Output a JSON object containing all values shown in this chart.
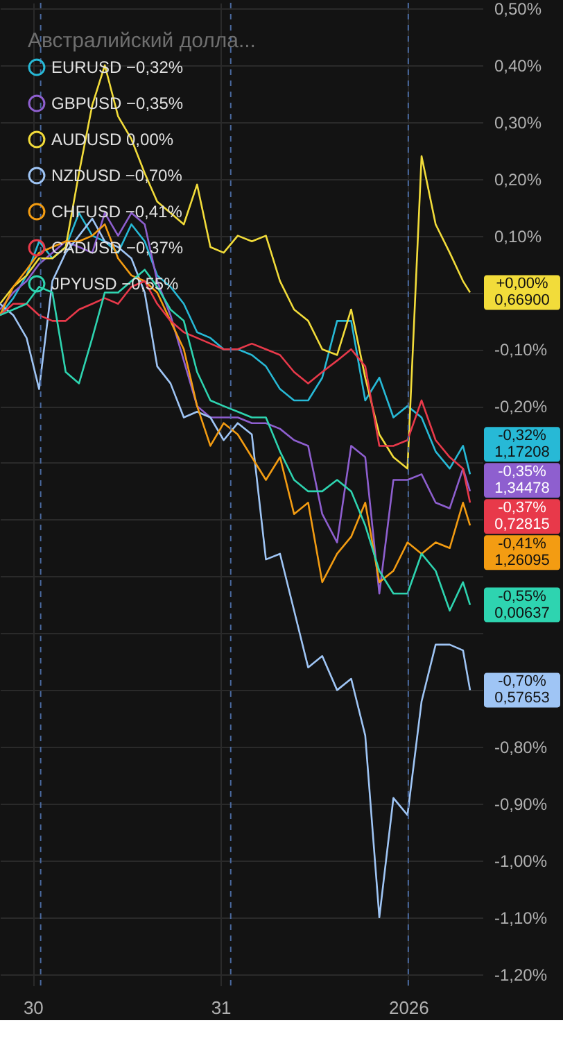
{
  "chart_data": {
    "type": "line",
    "legend_title": "Австралийский долла...",
    "legend": "top left",
    "grid": true,
    "line_style": "solid",
    "x": [
      "2025-12-29T19:48",
      "2025-12-29T21:30",
      "2025-12-29T23:12",
      "2025-12-30T00:48",
      "2025-12-30T02:30",
      "2025-12-30T04:12",
      "2025-12-30T05:54",
      "2025-12-30T07:36",
      "2025-12-30T09:12",
      "2025-12-30T10:54",
      "2025-12-30T12:36",
      "2025-12-30T14:18",
      "2025-12-30T15:54",
      "2025-12-30T17:36",
      "2025-12-30T19:18",
      "2025-12-30T21:00",
      "2025-12-30T22:42",
      "2025-12-31T00:24",
      "2025-12-31T02:12",
      "2025-12-31T04:00",
      "2025-12-31T05:48",
      "2025-12-31T07:36",
      "2025-12-31T09:24",
      "2025-12-31T11:12",
      "2025-12-31T13:00",
      "2025-12-31T14:54",
      "2025-12-31T16:42",
      "2025-12-31T18:30",
      "2025-12-31T20:18",
      "2025-12-31T22:06",
      "2025-12-31T23:54",
      "2026-01-01T01:42",
      "2026-01-01T03:30",
      "2026-01-01T05:18",
      "2026-01-01T07:00",
      "2026-01-01T07:54"
    ],
    "xlim": [
      "2025-12-29T19:48",
      "2026-01-01T09:30"
    ],
    "xticks": [
      {
        "value": "2025-12-30",
        "label": "30"
      },
      {
        "value": "2025-12-31",
        "label": "31"
      },
      {
        "value": "2026-01-01",
        "label": "2026"
      }
    ],
    "ylim": [
      -1.22,
      0.51
    ],
    "yticks": [
      {
        "value": 0.5,
        "label": "0,50%"
      },
      {
        "value": 0.4,
        "label": "0,40%"
      },
      {
        "value": 0.3,
        "label": "0,30%"
      },
      {
        "value": 0.2,
        "label": "0,20%"
      },
      {
        "value": 0.1,
        "label": "0,10%"
      },
      {
        "value": 0,
        "label": null
      },
      {
        "value": -0.1,
        "label": "-0,10%"
      },
      {
        "value": -0.2,
        "label": "-0,20%"
      },
      {
        "value": -0.3,
        "label": null
      },
      {
        "value": -0.4,
        "label": null
      },
      {
        "value": -0.5,
        "label": null
      },
      {
        "value": -0.6,
        "label": null
      },
      {
        "value": -0.7,
        "label": null
      },
      {
        "value": -0.8,
        "label": "-0,80%"
      },
      {
        "value": -0.9,
        "label": "-0,90%"
      },
      {
        "value": -1.0,
        "label": "-1,00%"
      },
      {
        "value": -1.1,
        "label": "-1,10%"
      },
      {
        "value": -1.2,
        "label": "-1,20%"
      }
    ],
    "ref_lines": [
      {
        "axis": "x",
        "value": "2025-12-30T01:00",
        "color": "#4a6aa0",
        "line_style": "dashed"
      },
      {
        "axis": "x",
        "value": "2025-12-31T01:18",
        "color": "#4a6aa0",
        "line_style": "dashed"
      },
      {
        "axis": "x",
        "value": "2026-01-01T00:00",
        "color": "#4a6aa0",
        "line_style": "dashed"
      }
    ],
    "series": [
      {
        "name": "EURUSD −0,32%",
        "color": "#27b9d6",
        "values": [
          -0.04,
          -0.01,
          0.03,
          0.09,
          0.06,
          0.08,
          0.14,
          0.1,
          0.09,
          0.07,
          0.12,
          0.09,
          0.03,
          0.01,
          -0.02,
          -0.07,
          -0.08,
          -0.1,
          -0.1,
          -0.11,
          -0.13,
          -0.17,
          -0.19,
          -0.19,
          -0.15,
          -0.05,
          -0.05,
          -0.19,
          -0.15,
          -0.22,
          -0.2,
          -0.22,
          -0.28,
          -0.31,
          -0.27,
          -0.32
        ]
      },
      {
        "name": "GBPUSD −0,35%",
        "color": "#8e5fcf",
        "values": [
          -0.03,
          0.0,
          0.02,
          0.05,
          0.07,
          0.09,
          0.08,
          0.07,
          0.14,
          0.1,
          0.14,
          0.12,
          0.02,
          -0.04,
          -0.12,
          -0.2,
          -0.22,
          -0.22,
          -0.22,
          -0.23,
          -0.23,
          -0.24,
          -0.26,
          -0.27,
          -0.39,
          -0.44,
          -0.27,
          -0.29,
          -0.53,
          -0.33,
          -0.33,
          -0.32,
          -0.37,
          -0.38,
          -0.31,
          -0.35
        ]
      },
      {
        "name": "AUDUSD 0,00%",
        "color": "#f2dc3a",
        "values": [
          -0.02,
          0.01,
          0.03,
          0.06,
          0.06,
          0.08,
          0.21,
          0.33,
          0.4,
          0.31,
          0.27,
          0.21,
          0.16,
          0.14,
          0.12,
          0.19,
          0.08,
          0.07,
          0.1,
          0.09,
          0.1,
          0.02,
          -0.03,
          -0.05,
          -0.1,
          -0.11,
          -0.03,
          -0.15,
          -0.25,
          -0.29,
          -0.31,
          0.24,
          0.12,
          0.07,
          0.02,
          0.0
        ]
      },
      {
        "name": "NZDUSD −0,70%",
        "color": "#9fc5f5",
        "values": [
          -0.02,
          -0.04,
          -0.08,
          -0.17,
          0.02,
          0.07,
          0.1,
          0.13,
          0.09,
          0.08,
          0.06,
          0.0,
          -0.13,
          -0.16,
          -0.22,
          -0.21,
          -0.22,
          -0.26,
          -0.23,
          -0.25,
          -0.47,
          -0.46,
          -0.56,
          -0.66,
          -0.64,
          -0.7,
          -0.68,
          -0.78,
          -1.1,
          -0.89,
          -0.92,
          -0.72,
          -0.62,
          -0.62,
          -0.63,
          -0.7
        ]
      },
      {
        "name": "CHFUSD −0,41%",
        "color": "#f39c12",
        "values": [
          -0.04,
          0.01,
          0.04,
          0.07,
          0.08,
          0.09,
          0.09,
          0.1,
          0.12,
          0.06,
          0.03,
          0.02,
          0.0,
          -0.05,
          -0.1,
          -0.2,
          -0.27,
          -0.23,
          -0.25,
          -0.29,
          -0.33,
          -0.29,
          -0.39,
          -0.37,
          -0.51,
          -0.46,
          -0.43,
          -0.37,
          -0.51,
          -0.49,
          -0.44,
          -0.46,
          -0.44,
          -0.45,
          -0.37,
          -0.41
        ]
      },
      {
        "name": "CADUSD −0,37%",
        "color": "#e8394a",
        "values": [
          -0.04,
          -0.02,
          -0.02,
          -0.04,
          -0.05,
          -0.05,
          -0.03,
          -0.02,
          -0.01,
          -0.02,
          0.01,
          0.02,
          -0.02,
          -0.05,
          -0.07,
          -0.08,
          -0.09,
          -0.1,
          -0.1,
          -0.09,
          -0.1,
          -0.11,
          -0.14,
          -0.16,
          -0.14,
          -0.12,
          -0.1,
          -0.13,
          -0.27,
          -0.27,
          -0.26,
          -0.19,
          -0.26,
          -0.29,
          -0.31,
          -0.37
        ]
      },
      {
        "name": "JPYUSD −0,55%",
        "color": "#2ed4b0",
        "values": [
          -0.04,
          -0.03,
          -0.02,
          0.01,
          0.0,
          -0.14,
          -0.16,
          -0.08,
          0.0,
          0.0,
          0.02,
          0.04,
          0.01,
          -0.03,
          -0.05,
          -0.14,
          -0.19,
          -0.2,
          -0.21,
          -0.22,
          -0.22,
          -0.28,
          -0.33,
          -0.35,
          -0.35,
          -0.33,
          -0.35,
          -0.41,
          -0.49,
          -0.53,
          -0.53,
          -0.46,
          -0.49,
          -0.56,
          -0.51,
          -0.55
        ]
      }
    ],
    "annotations": [
      {
        "text": "-0,32%\n1,17208",
        "x": "2026-01-01T07:54",
        "y": -0.32
      },
      {
        "text": "-0,35%\n1,34478",
        "x": "2026-01-01T07:54",
        "y": -0.35
      },
      {
        "text": "+0,00%\n0,66900",
        "x": "2026-01-01T07:54",
        "y": 0.0
      },
      {
        "text": "-0,70%\n0,57653",
        "x": "2026-01-01T07:54",
        "y": -0.7
      },
      {
        "text": "-0,41%\n1,26095",
        "x": "2026-01-01T07:54",
        "y": -0.41
      },
      {
        "text": "-0,37%\n0,72815",
        "x": "2026-01-01T07:54",
        "y": -0.37
      },
      {
        "text": "-0,55%\n0,00637",
        "x": "2026-01-01T07:54",
        "y": -0.55
      }
    ]
  }
}
